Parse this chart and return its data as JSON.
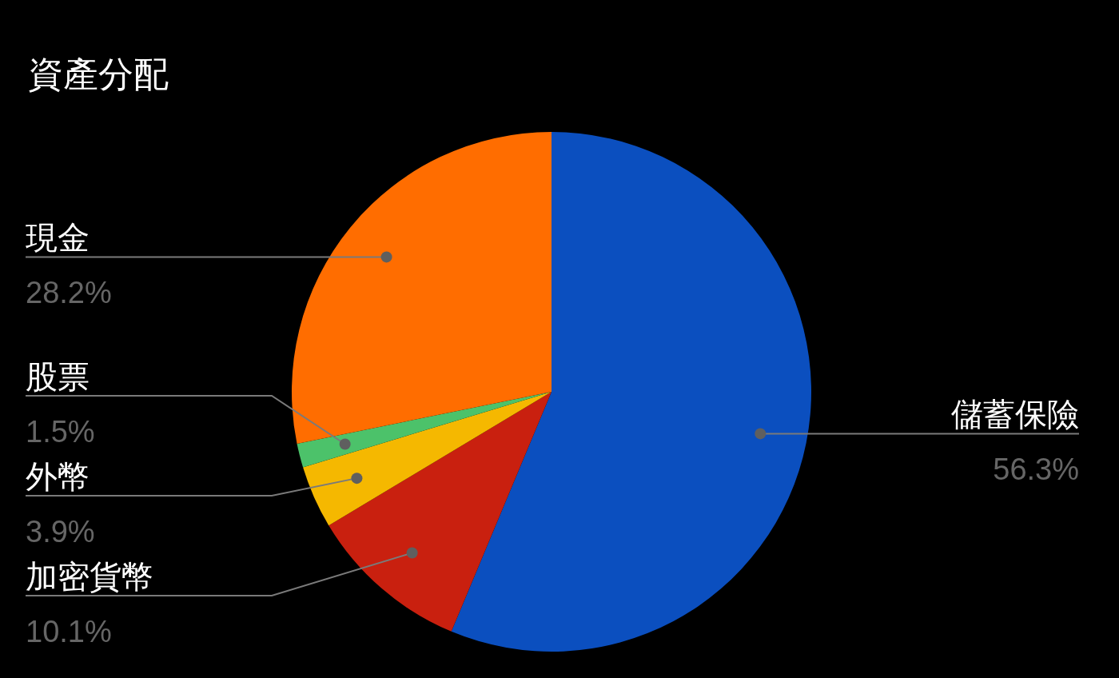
{
  "chart_data": {
    "type": "pie",
    "title": "資產分配",
    "categories": [
      "儲蓄保險",
      "加密貨幣",
      "外幣",
      "股票",
      "現金"
    ],
    "values": [
      56.3,
      10.1,
      3.9,
      1.5,
      28.2
    ],
    "value_labels": [
      "56.3%",
      "10.1%",
      "3.9%",
      "1.5%",
      "28.2%"
    ],
    "colors": [
      "#0b4fbf",
      "#c9200f",
      "#f5b800",
      "#4cc26a",
      "#ff6d00"
    ]
  }
}
